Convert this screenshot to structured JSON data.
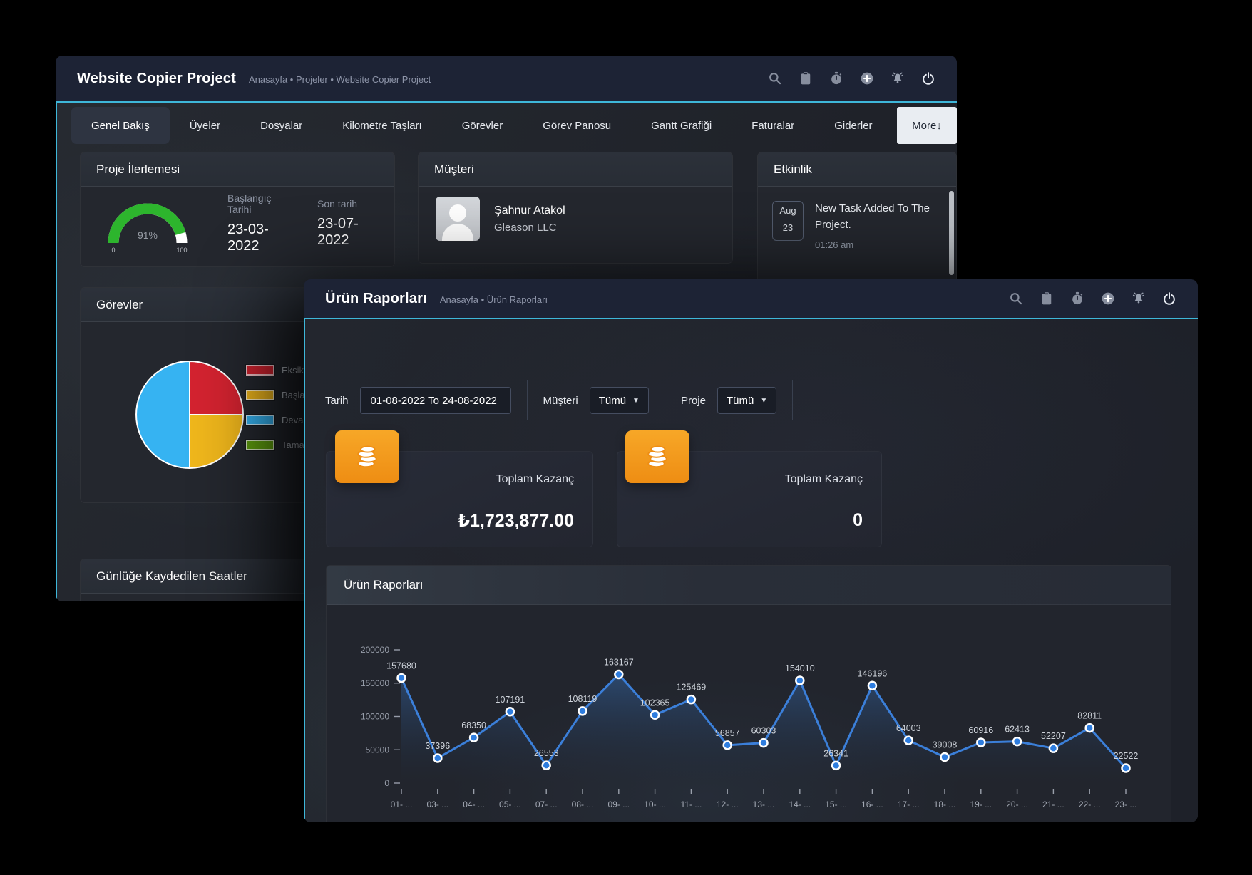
{
  "colors": {
    "accent_cyan": "#3eb7d9",
    "header_navy": "#1d2335",
    "orange_icon": "#f09a1c",
    "chart_line": "#3b7fd9",
    "gauge_green": "#2db52d",
    "pie_red": "#d42330",
    "pie_yellow": "#f0b71c",
    "pie_blue": "#36b3f2",
    "pie_green": "#5f9e0e"
  },
  "back_window": {
    "title": "Website Copier Project",
    "breadcrumb": "Anasayfa • Projeler • Website Copier Project",
    "header_icons": [
      "search",
      "clipboard",
      "stopwatch",
      "plus",
      "bell",
      "power"
    ],
    "tabs": [
      {
        "label": "Genel Bakış",
        "active": true
      },
      {
        "label": "Üyeler"
      },
      {
        "label": "Dosyalar"
      },
      {
        "label": "Kilometre Taşları"
      },
      {
        "label": "Görevler"
      },
      {
        "label": "Görev Panosu"
      },
      {
        "label": "Gantt Grafiği"
      },
      {
        "label": "Faturalar"
      },
      {
        "label": "Giderler"
      }
    ],
    "more_label": "More↓",
    "progress_card": {
      "title": "Proje İlerlemesi",
      "start_label": "Başlangıç Tarihi",
      "start_date": "23-03-2022",
      "end_label": "Son tarih",
      "end_date": "23-07-2022"
    },
    "customer_card": {
      "title": "Müşteri",
      "name": "Şahnur Atakol",
      "company": "Gleason LLC"
    },
    "activity_card": {
      "title": "Etkinlik",
      "items": [
        {
          "month": "Aug",
          "day": "23",
          "text": "New Task Added To The Project.",
          "time": "01:26 am"
        }
      ]
    },
    "tasks_card": {
      "title": "Görevler"
    },
    "hours_card": {
      "title": "Günlüğe Kaydedilen Saatler"
    }
  },
  "front_window": {
    "title": "Ürün Raporları",
    "breadcrumb": "Anasayfa • Ürün Raporları",
    "header_icons": [
      "search",
      "clipboard",
      "stopwatch",
      "plus",
      "bell",
      "power"
    ],
    "filters": {
      "date_label": "Tarih",
      "date_value": "01-08-2022 To 24-08-2022",
      "customer_label": "Müşteri",
      "customer_value": "Tümü",
      "project_label": "Proje",
      "project_value": "Tümü"
    },
    "stat_cards": [
      {
        "label": "Toplam Kazanç",
        "value": "₺1,723,877.00",
        "icon": "coins"
      },
      {
        "label": "Toplam Kazanç",
        "value": "0",
        "icon": "coins"
      }
    ],
    "report_card_title": "Ürün Raporları"
  },
  "chart_data": [
    {
      "type": "line",
      "title": "Ürün Raporları",
      "x": [
        "01- ...",
        "03- ...",
        "04- ...",
        "05- ...",
        "07- ...",
        "08- ...",
        "09- ...",
        "10- ...",
        "11- ...",
        "12- ...",
        "13- ...",
        "14- ...",
        "15- ...",
        "16- ...",
        "17- ...",
        "18- ...",
        "19- ...",
        "20- ...",
        "21- ...",
        "22- ...",
        "23- ..."
      ],
      "values": [
        157680,
        37396,
        68350,
        107191,
        26553,
        108119,
        163167,
        102365,
        125469,
        56857,
        60303,
        154010,
        26341,
        146196,
        64003,
        39008,
        60916,
        62413,
        52207,
        82811,
        22522
      ],
      "ylim": [
        0,
        200000
      ],
      "yticks": [
        0,
        50000,
        100000,
        150000,
        200000
      ],
      "grid": false,
      "legend": "none",
      "area": true,
      "point_labels": true,
      "line_color": "#3b7fd9"
    },
    {
      "type": "pie",
      "title": "Görevler",
      "legend_position": "right",
      "slices": [
        {
          "label": "Eksik",
          "value": 25,
          "color": "#d42330"
        },
        {
          "label": "Başla",
          "value": 25,
          "color": "#f0b71c"
        },
        {
          "label": "Deva",
          "value": 50,
          "color": "#36b3f2"
        },
        {
          "label": "Tama",
          "value": 0,
          "color": "#5f9e0e"
        }
      ]
    },
    {
      "type": "gauge",
      "title": "Proje İlerlemesi",
      "value": 91,
      "min": "0",
      "max": "100",
      "label": "91%",
      "color": "#2db52d",
      "rest_color": "#ffffff"
    }
  ]
}
